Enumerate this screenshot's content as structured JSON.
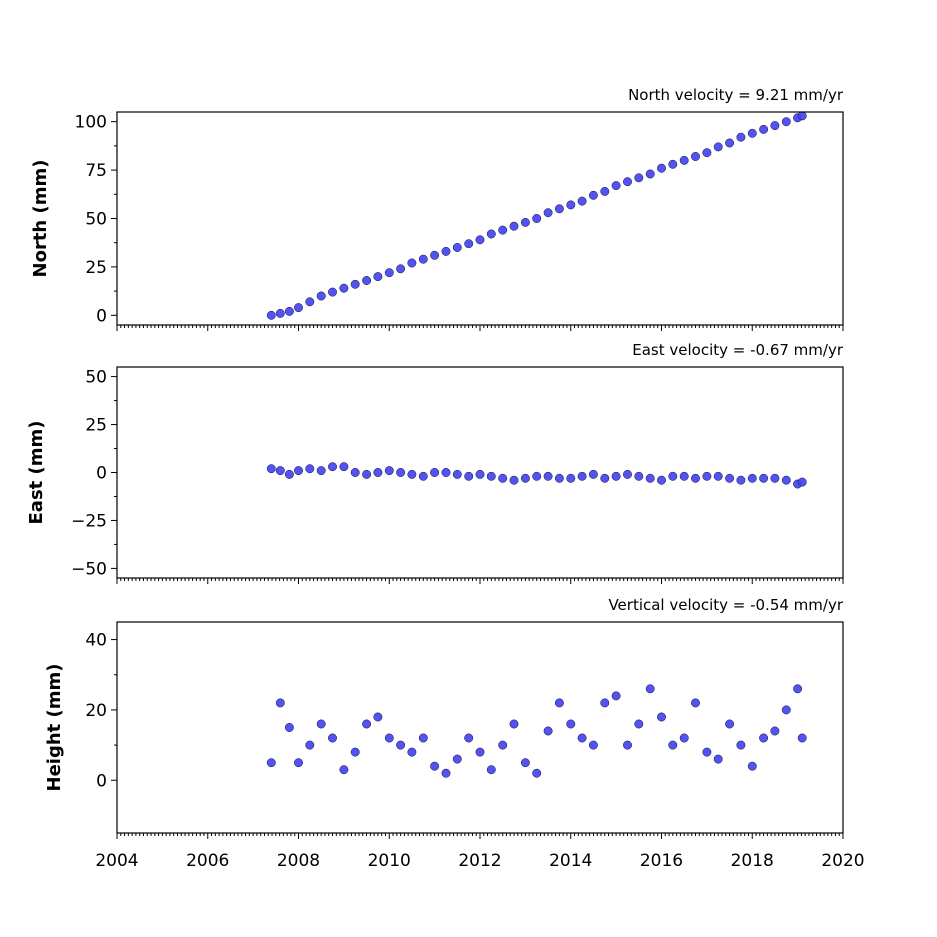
{
  "chart_data": [
    {
      "type": "scatter",
      "title": "North velocity = 9.21 mm/yr",
      "ylabel": "North (mm)",
      "xlabel": "",
      "xlim": [
        2004,
        2020
      ],
      "ylim": [
        -5,
        105
      ],
      "yticks": [
        0,
        25,
        50,
        75,
        100
      ],
      "grid": false,
      "marker_color": "#4a4af0",
      "series": [
        {
          "x": [
            2007.4,
            2007.6,
            2007.8,
            2008.0,
            2008.25,
            2008.5,
            2008.75,
            2009.0,
            2009.25,
            2009.5,
            2009.75,
            2010.0,
            2010.25,
            2010.5,
            2010.75,
            2011.0,
            2011.25,
            2011.5,
            2011.75,
            2012.0,
            2012.25,
            2012.5,
            2012.75,
            2013.0,
            2013.25,
            2013.5,
            2013.75,
            2014.0,
            2014.25,
            2014.5,
            2014.75,
            2015.0,
            2015.25,
            2015.5,
            2015.75,
            2016.0,
            2016.25,
            2016.5,
            2016.75,
            2017.0,
            2017.25,
            2017.5,
            2017.75,
            2018.0,
            2018.25,
            2018.5,
            2018.75,
            2019.0,
            2019.1
          ],
          "y": [
            0,
            1,
            2,
            4,
            7,
            10,
            12,
            14,
            16,
            18,
            20,
            22,
            24,
            27,
            29,
            31,
            33,
            35,
            37,
            39,
            42,
            44,
            46,
            48,
            50,
            53,
            55,
            57,
            59,
            62,
            64,
            67,
            69,
            71,
            73,
            76,
            78,
            80,
            82,
            84,
            87,
            89,
            92,
            94,
            96,
            98,
            100,
            102,
            103
          ]
        }
      ]
    },
    {
      "type": "scatter",
      "title": "East velocity = -0.67 mm/yr",
      "ylabel": "East (mm)",
      "xlabel": "",
      "xlim": [
        2004,
        2020
      ],
      "ylim": [
        -55,
        55
      ],
      "yticks": [
        -50,
        -25,
        0,
        25,
        50
      ],
      "grid": false,
      "marker_color": "#4a4af0",
      "series": [
        {
          "x": [
            2007.4,
            2007.6,
            2007.8,
            2008.0,
            2008.25,
            2008.5,
            2008.75,
            2009.0,
            2009.25,
            2009.5,
            2009.75,
            2010.0,
            2010.25,
            2010.5,
            2010.75,
            2011.0,
            2011.25,
            2011.5,
            2011.75,
            2012.0,
            2012.25,
            2012.5,
            2012.75,
            2013.0,
            2013.25,
            2013.5,
            2013.75,
            2014.0,
            2014.25,
            2014.5,
            2014.75,
            2015.0,
            2015.25,
            2015.5,
            2015.75,
            2016.0,
            2016.25,
            2016.5,
            2016.75,
            2017.0,
            2017.25,
            2017.5,
            2017.75,
            2018.0,
            2018.25,
            2018.5,
            2018.75,
            2019.0,
            2019.1
          ],
          "y": [
            2,
            1,
            -1,
            1,
            2,
            1,
            3,
            3,
            0,
            -1,
            0,
            1,
            0,
            -1,
            -2,
            0,
            0,
            -1,
            -2,
            -1,
            -2,
            -3,
            -4,
            -3,
            -2,
            -2,
            -3,
            -3,
            -2,
            -1,
            -3,
            -2,
            -1,
            -2,
            -3,
            -4,
            -2,
            -2,
            -3,
            -2,
            -2,
            -3,
            -4,
            -3,
            -3,
            -3,
            -4,
            -6,
            -5
          ]
        }
      ]
    },
    {
      "type": "scatter",
      "title": "Vertical velocity = -0.54 mm/yr",
      "ylabel": "Height (mm)",
      "xlabel": "",
      "xlim": [
        2004,
        2020
      ],
      "ylim": [
        -15,
        45
      ],
      "yticks": [
        0,
        20,
        40
      ],
      "xticks": [
        2004,
        2006,
        2008,
        2010,
        2012,
        2014,
        2016,
        2018,
        2020
      ],
      "grid": false,
      "marker_color": "#4a4af0",
      "series": [
        {
          "x": [
            2007.4,
            2007.6,
            2007.8,
            2008.0,
            2008.25,
            2008.5,
            2008.75,
            2009.0,
            2009.25,
            2009.5,
            2009.75,
            2010.0,
            2010.25,
            2010.5,
            2010.75,
            2011.0,
            2011.25,
            2011.5,
            2011.75,
            2012.0,
            2012.25,
            2012.5,
            2012.75,
            2013.0,
            2013.25,
            2013.5,
            2013.75,
            2014.0,
            2014.25,
            2014.5,
            2014.75,
            2015.0,
            2015.25,
            2015.5,
            2015.75,
            2016.0,
            2016.25,
            2016.5,
            2016.75,
            2017.0,
            2017.25,
            2017.5,
            2017.75,
            2018.0,
            2018.25,
            2018.5,
            2018.75,
            2019.0,
            2019.1
          ],
          "y": [
            5,
            22,
            15,
            5,
            10,
            16,
            12,
            3,
            8,
            16,
            18,
            12,
            10,
            8,
            12,
            4,
            2,
            6,
            12,
            8,
            3,
            10,
            16,
            5,
            2,
            14,
            22,
            16,
            12,
            10,
            22,
            24,
            10,
            16,
            26,
            18,
            10,
            12,
            22,
            8,
            6,
            16,
            10,
            4,
            12,
            14,
            20,
            26,
            12
          ]
        }
      ]
    }
  ]
}
